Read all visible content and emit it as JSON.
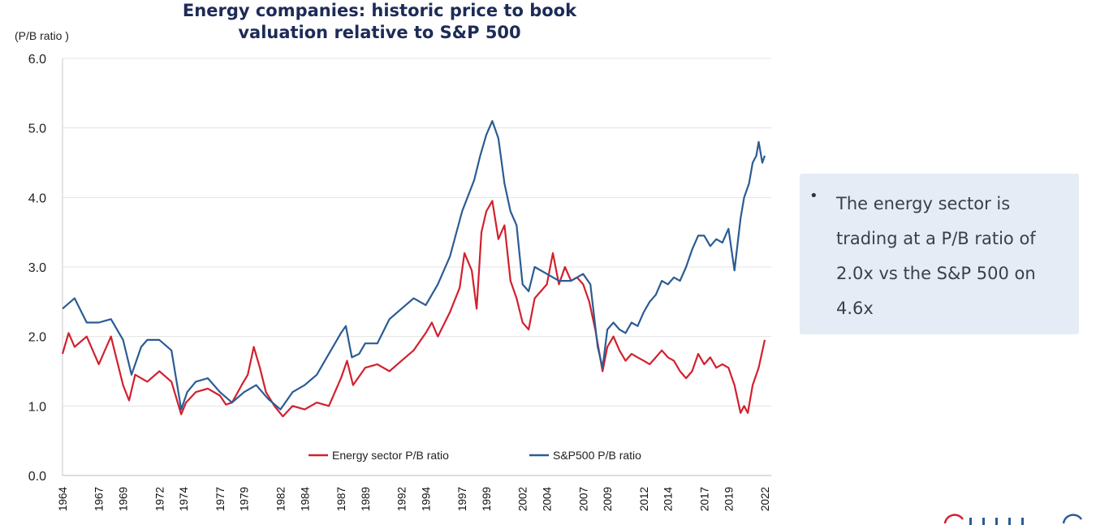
{
  "chart_data": {
    "type": "line",
    "title": "Energy companies: historic price to book valuation relative to S&P 500",
    "ylabel": "(P/B ratio )",
    "ylim": [
      0,
      6
    ],
    "yticks": [
      "0.0",
      "1.0",
      "2.0",
      "3.0",
      "4.0",
      "5.0",
      "6.0"
    ],
    "xlim": [
      1964,
      2022
    ],
    "xtick_values": [
      1964,
      1967,
      1969,
      1972,
      1974,
      1977,
      1979,
      1982,
      1984,
      1987,
      1989,
      1992,
      1994,
      1997,
      1999,
      2002,
      2004,
      2007,
      2009,
      2012,
      2014,
      2017,
      2019,
      2022
    ],
    "xticks": [
      "1964",
      "1967",
      "1969",
      "1972",
      "1974",
      "1977",
      "1979",
      "1982",
      "1984",
      "1987",
      "1989",
      "1992",
      "1994",
      "1997",
      "1999",
      "2002",
      "2004",
      "2007",
      "2009",
      "2012",
      "2014",
      "2017",
      "2019",
      "2022"
    ],
    "grid": "horizontal",
    "legend_position": "bottom-center",
    "series": [
      {
        "name": "Energy sector P/B ratio",
        "color": "#d2202e",
        "x": [
          1964,
          1964.5,
          1965,
          1966,
          1967,
          1968,
          1969,
          1969.5,
          1970,
          1971,
          1972,
          1973,
          1973.8,
          1974.2,
          1975,
          1976,
          1977,
          1977.5,
          1978,
          1978.8,
          1979.3,
          1979.8,
          1980.3,
          1980.8,
          1981.5,
          1982.2,
          1983,
          1984,
          1985,
          1986,
          1987,
          1987.5,
          1988,
          1989,
          1990,
          1991,
          1992,
          1993,
          1994,
          1994.5,
          1995,
          1996,
          1996.8,
          1997.2,
          1997.8,
          1998.2,
          1998.6,
          1999,
          1999.5,
          2000,
          2000.5,
          2001,
          2001.5,
          2002,
          2002.5,
          2003,
          2004,
          2004.5,
          2005,
          2005.5,
          2006,
          2006.5,
          2007,
          2007.5,
          2008,
          2008.6,
          2009,
          2009.5,
          2010,
          2010.5,
          2011,
          2011.5,
          2012,
          2012.5,
          2013,
          2013.5,
          2014,
          2014.5,
          2015,
          2015.5,
          2016,
          2016.5,
          2017,
          2017.5,
          2018,
          2018.5,
          2019,
          2019.5,
          2020,
          2020.3,
          2020.6,
          2021,
          2021.5,
          2022
        ],
        "values": [
          1.75,
          2.05,
          1.85,
          2.0,
          1.6,
          2.0,
          1.3,
          1.08,
          1.45,
          1.35,
          1.5,
          1.35,
          0.88,
          1.05,
          1.2,
          1.25,
          1.15,
          1.02,
          1.05,
          1.3,
          1.45,
          1.85,
          1.55,
          1.2,
          1.0,
          0.85,
          1.0,
          0.95,
          1.05,
          1.0,
          1.4,
          1.65,
          1.3,
          1.55,
          1.6,
          1.5,
          1.65,
          1.8,
          2.05,
          2.2,
          2.0,
          2.35,
          2.7,
          3.2,
          2.95,
          2.4,
          3.5,
          3.8,
          3.95,
          3.4,
          3.6,
          2.8,
          2.55,
          2.2,
          2.1,
          2.55,
          2.75,
          3.2,
          2.75,
          3.0,
          2.8,
          2.85,
          2.75,
          2.5,
          2.1,
          1.5,
          1.85,
          2.0,
          1.8,
          1.65,
          1.75,
          1.7,
          1.65,
          1.6,
          1.7,
          1.8,
          1.7,
          1.65,
          1.5,
          1.4,
          1.5,
          1.75,
          1.6,
          1.7,
          1.55,
          1.6,
          1.55,
          1.3,
          0.9,
          1.0,
          0.9,
          1.3,
          1.55,
          1.95
        ]
      },
      {
        "name": "S&P500 P/B ratio",
        "color": "#2b5c94",
        "x": [
          1964,
          1965,
          1966,
          1967,
          1968,
          1969,
          1969.7,
          1970.5,
          1971,
          1972,
          1973,
          1973.8,
          1974.3,
          1975,
          1976,
          1977,
          1978,
          1979,
          1980,
          1981,
          1982,
          1983,
          1984,
          1985,
          1986,
          1987,
          1987.4,
          1987.9,
          1988.5,
          1989,
          1990,
          1991,
          1992,
          1993,
          1994,
          1995,
          1996,
          1997,
          1998,
          1998.5,
          1999,
          1999.5,
          2000,
          2000.5,
          2001,
          2001.5,
          2002,
          2002.5,
          2003,
          2004,
          2005,
          2006,
          2007,
          2007.6,
          2008.2,
          2008.6,
          2009,
          2009.5,
          2010,
          2010.5,
          2011,
          2011.5,
          2012,
          2012.5,
          2013,
          2013.5,
          2014,
          2014.5,
          2015,
          2015.5,
          2016,
          2016.5,
          2017,
          2017.5,
          2018,
          2018.5,
          2019,
          2019.5,
          2020,
          2020.3,
          2020.7,
          2021,
          2021.3,
          2021.5,
          2021.8,
          2022
        ],
        "values": [
          2.4,
          2.55,
          2.2,
          2.2,
          2.25,
          1.95,
          1.45,
          1.85,
          1.95,
          1.95,
          1.8,
          0.95,
          1.2,
          1.35,
          1.4,
          1.2,
          1.05,
          1.2,
          1.3,
          1.1,
          0.95,
          1.2,
          1.3,
          1.45,
          1.75,
          2.05,
          2.15,
          1.7,
          1.75,
          1.9,
          1.9,
          2.25,
          2.4,
          2.55,
          2.45,
          2.75,
          3.15,
          3.8,
          4.25,
          4.6,
          4.9,
          5.1,
          4.85,
          4.2,
          3.8,
          3.6,
          2.75,
          2.65,
          3.0,
          2.9,
          2.8,
          2.8,
          2.9,
          2.75,
          1.85,
          1.55,
          2.1,
          2.2,
          2.1,
          2.05,
          2.2,
          2.15,
          2.35,
          2.5,
          2.6,
          2.8,
          2.75,
          2.85,
          2.8,
          3.0,
          3.25,
          3.45,
          3.45,
          3.3,
          3.4,
          3.35,
          3.55,
          2.95,
          3.7,
          4.0,
          4.2,
          4.5,
          4.6,
          4.8,
          4.5,
          4.6
        ]
      }
    ]
  },
  "note": {
    "bullet": "•",
    "text": "The energy sector is trading at a P/B ratio of 2.0x vs the S&P 500 on 4.6x"
  },
  "colors": {
    "title": "#1d2b57",
    "energy": "#d2202e",
    "sp500": "#2b5c94",
    "note_bg": "#e6ecf5"
  }
}
